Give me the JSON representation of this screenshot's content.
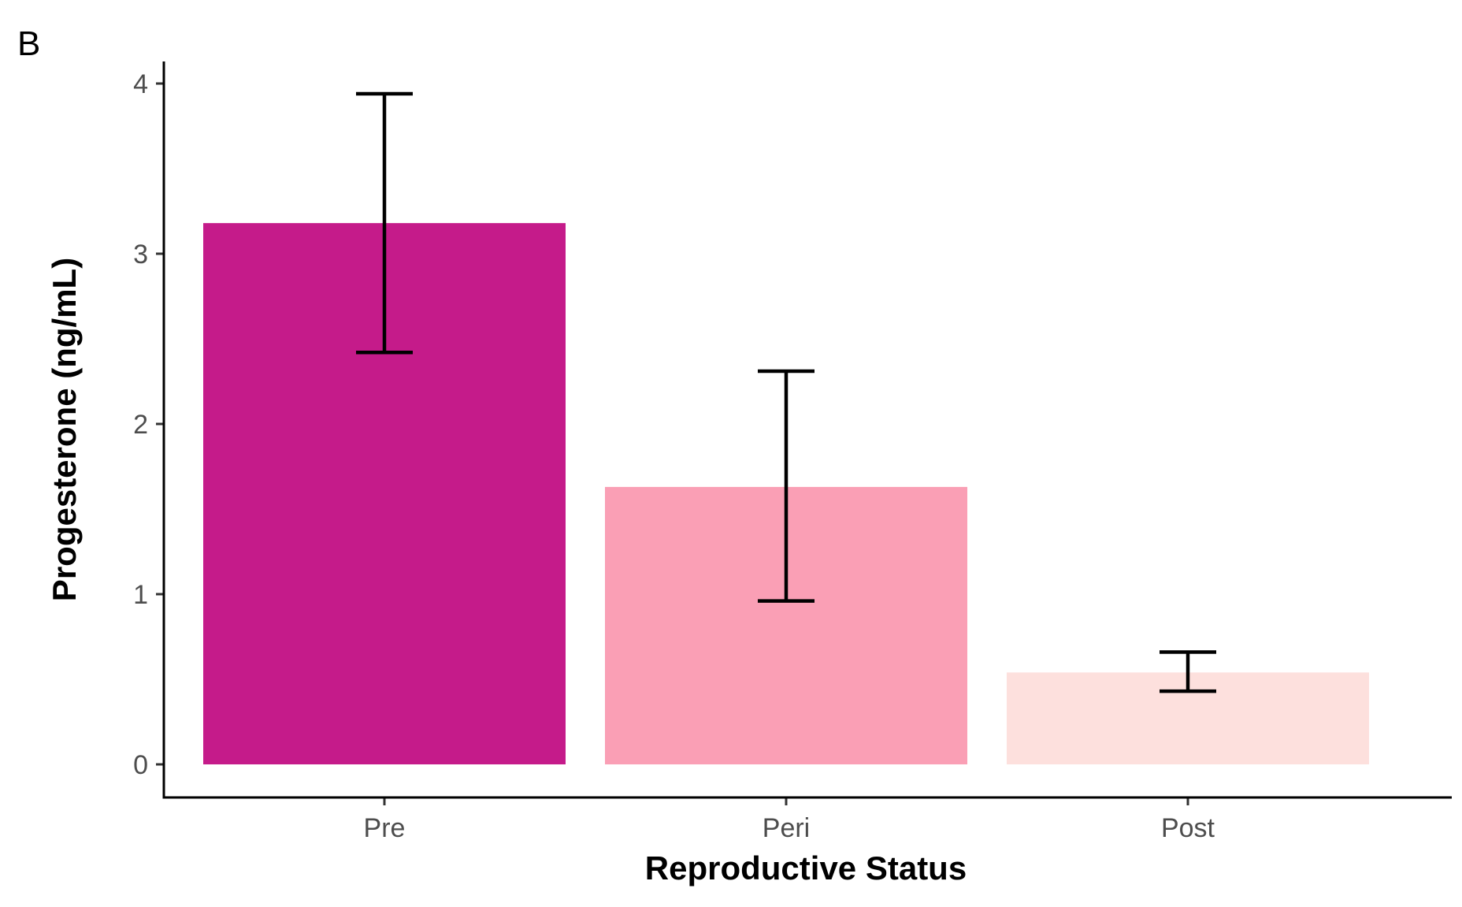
{
  "panel_label": "B",
  "chart_data": {
    "type": "bar",
    "categories": [
      "Pre",
      "Peri",
      "Post"
    ],
    "values": [
      3.18,
      1.63,
      0.54
    ],
    "error_upper": [
      3.94,
      2.31,
      0.66
    ],
    "error_lower": [
      2.42,
      0.96,
      0.43
    ],
    "bar_colors": [
      "#c51b8a",
      "#fa9fb5",
      "#fde0dd"
    ],
    "xlabel": "Reproductive Status",
    "ylabel": "Progesterone (ng/mL)",
    "ylim": [
      -0.2,
      4.15
    ],
    "yticks": [
      0,
      1,
      2,
      3,
      4
    ],
    "ytick_labels": [
      "0",
      "1",
      "2",
      "3",
      "4"
    ],
    "grid": false,
    "legend": "none"
  }
}
